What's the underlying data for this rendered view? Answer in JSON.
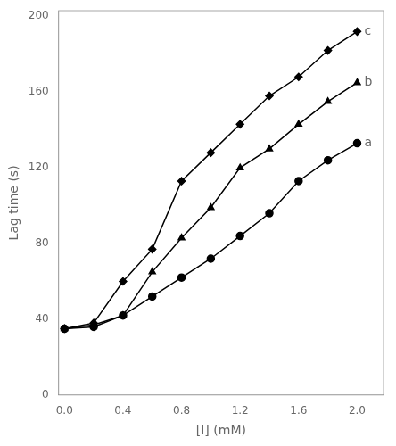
{
  "chart_data": {
    "type": "line",
    "xlabel": "[I] (mM)",
    "ylabel": "Lag time (s)",
    "x": [
      0.0,
      0.2,
      0.4,
      0.6,
      0.8,
      1.0,
      1.2,
      1.4,
      1.6,
      1.8,
      2.0
    ],
    "series": [
      {
        "name": "a",
        "color": "#000000",
        "marker": "circle",
        "values": [
          35,
          36,
          42,
          52,
          62,
          72,
          84,
          96,
          113,
          124,
          133
        ]
      },
      {
        "name": "b",
        "color": "#000000",
        "marker": "triangle",
        "values": [
          35,
          37,
          42,
          65,
          83,
          99,
          120,
          130,
          143,
          155,
          165
        ]
      },
      {
        "name": "c",
        "color": "#000000",
        "marker": "diamond",
        "values": [
          35,
          38,
          60,
          77,
          113,
          128,
          143,
          158,
          168,
          182,
          192
        ]
      }
    ],
    "xlim": [
      -0.04,
      2.18
    ],
    "ylim": [
      0,
      203
    ],
    "xticks": [
      {
        "value": 0.0,
        "label": "0.0"
      },
      0.4,
      0.8,
      1.2,
      1.6,
      {
        "value": 2.0,
        "label": "2.0"
      }
    ],
    "yticks": [
      0,
      40,
      80,
      120,
      160,
      200
    ],
    "grid": false
  }
}
